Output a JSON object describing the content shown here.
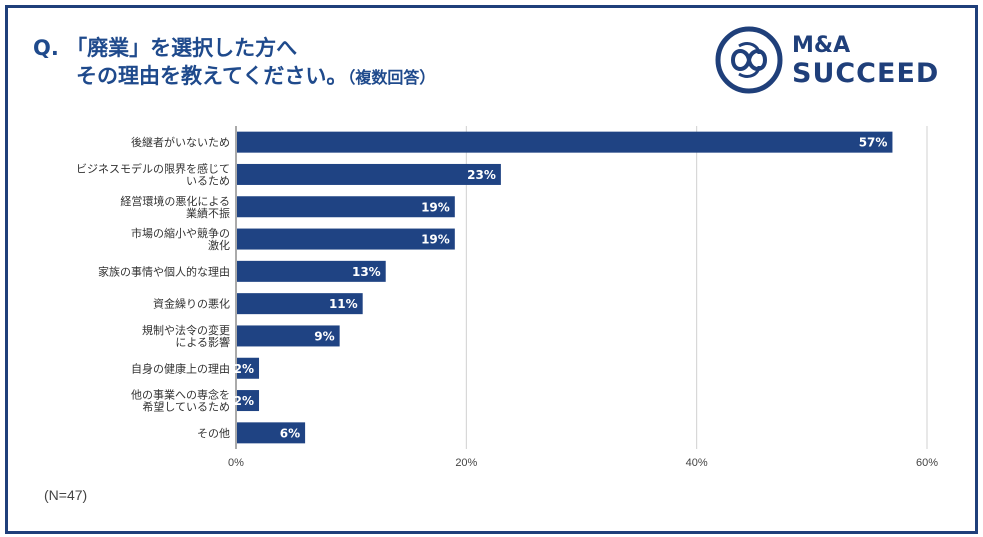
{
  "title": {
    "prefix": "Q.",
    "line1": "「廃業」を選択した方へ",
    "line2": "その理由を教えてください。",
    "note": "（複数回答）"
  },
  "logo": {
    "brand_line1": "M&A",
    "brand_line2": "SUCCEED",
    "icon": "infinity-knot-icon"
  },
  "sample_size": "(N=47)",
  "colors": {
    "bar": "#1f4383",
    "border": "#1f3f7a",
    "title": "#1f4a8c",
    "grid": "#d0d0d0"
  },
  "chart_data": {
    "type": "bar",
    "orientation": "horizontal",
    "categories": [
      [
        "後継者がいないため"
      ],
      [
        "ビジネスモデルの限界を感じて",
        "いるため"
      ],
      [
        "経営環境の悪化による",
        "業績不振"
      ],
      [
        "市場の縮小や競争の",
        "激化"
      ],
      [
        "家族の事情や個人的な理由"
      ],
      [
        "資金繰りの悪化"
      ],
      [
        "規制や法令の変更",
        "による影響"
      ],
      [
        "自身の健康上の理由"
      ],
      [
        "他の事業への専念を",
        "希望しているため"
      ],
      [
        "その他"
      ]
    ],
    "values": [
      57,
      23,
      19,
      19,
      13,
      11,
      9,
      2,
      2,
      6
    ],
    "value_labels": [
      "57%",
      "23%",
      "19%",
      "19%",
      "13%",
      "11%",
      "9%",
      "2%",
      "2%",
      "6%"
    ],
    "xlim": [
      0,
      60
    ],
    "ticks": [
      0,
      20,
      40,
      60
    ],
    "tick_labels": [
      "0%",
      "20%",
      "40%",
      "60%"
    ],
    "grid": true
  }
}
